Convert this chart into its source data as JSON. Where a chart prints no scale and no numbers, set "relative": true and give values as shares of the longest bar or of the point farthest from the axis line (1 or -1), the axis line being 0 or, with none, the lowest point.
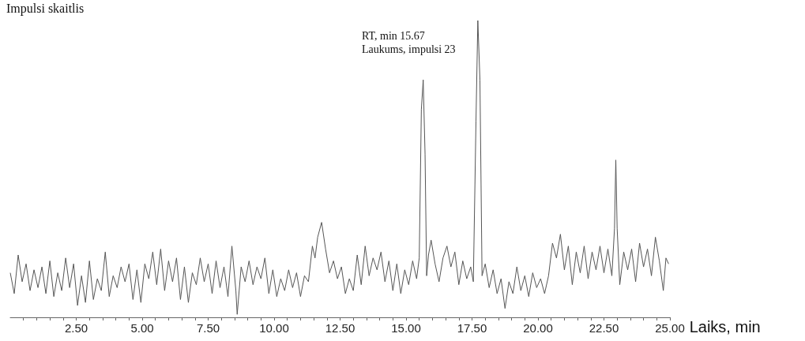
{
  "chart_data": {
    "type": "line",
    "relative": true,
    "ylabel": "Impulsi skaitlis",
    "xlabel": "Laiks, min",
    "xlim": [
      0,
      25
    ],
    "xticks": [
      {
        "value": 0.5,
        "label": null
      },
      {
        "value": 1,
        "label": null
      },
      {
        "value": 1.5,
        "label": null
      },
      {
        "value": 2,
        "label": null
      },
      {
        "value": 2.5,
        "label": "2.50"
      },
      {
        "value": 3,
        "label": null
      },
      {
        "value": 3.5,
        "label": null
      },
      {
        "value": 4,
        "label": null
      },
      {
        "value": 4.5,
        "label": null
      },
      {
        "value": 5,
        "label": "5.00"
      },
      {
        "value": 5.5,
        "label": null
      },
      {
        "value": 6,
        "label": null
      },
      {
        "value": 6.5,
        "label": null
      },
      {
        "value": 7,
        "label": null
      },
      {
        "value": 7.5,
        "label": "7.50"
      },
      {
        "value": 8,
        "label": null
      },
      {
        "value": 8.5,
        "label": null
      },
      {
        "value": 9,
        "label": null
      },
      {
        "value": 9.5,
        "label": null
      },
      {
        "value": 10,
        "label": "10.00"
      },
      {
        "value": 10.5,
        "label": null
      },
      {
        "value": 11,
        "label": null
      },
      {
        "value": 11.5,
        "label": null
      },
      {
        "value": 12,
        "label": null
      },
      {
        "value": 12.5,
        "label": "12.50"
      },
      {
        "value": 13,
        "label": null
      },
      {
        "value": 13.5,
        "label": null
      },
      {
        "value": 14,
        "label": null
      },
      {
        "value": 14.5,
        "label": null
      },
      {
        "value": 15,
        "label": "15.00"
      },
      {
        "value": 15.5,
        "label": null
      },
      {
        "value": 16,
        "label": null
      },
      {
        "value": 16.5,
        "label": null
      },
      {
        "value": 17,
        "label": null
      },
      {
        "value": 17.5,
        "label": "17.50"
      },
      {
        "value": 18,
        "label": null
      },
      {
        "value": 18.5,
        "label": null
      },
      {
        "value": 19,
        "label": null
      },
      {
        "value": 19.5,
        "label": null
      },
      {
        "value": 20,
        "label": "20.00"
      },
      {
        "value": 20.5,
        "label": null
      },
      {
        "value": 21,
        "label": null
      },
      {
        "value": 21.5,
        "label": null
      },
      {
        "value": 22,
        "label": null
      },
      {
        "value": 22.5,
        "label": "22.50"
      },
      {
        "value": 23,
        "label": null
      },
      {
        "value": 23.5,
        "label": null
      },
      {
        "value": 24,
        "label": null
      },
      {
        "value": 24.5,
        "label": null
      },
      {
        "value": 25,
        "label": "25.00"
      }
    ],
    "grid": false,
    "marker": "none",
    "line_style": "solid",
    "annotations": [
      "RT, min 15.67",
      "Laukums, impulsi 23"
    ],
    "series": [
      {
        "color": "#555555",
        "x": [
          0.0,
          0.15,
          0.3,
          0.45,
          0.6,
          0.75,
          0.9,
          1.05,
          1.2,
          1.35,
          1.5,
          1.65,
          1.8,
          1.95,
          2.1,
          2.25,
          2.4,
          2.55,
          2.7,
          2.85,
          3.0,
          3.15,
          3.3,
          3.45,
          3.6,
          3.75,
          3.9,
          4.05,
          4.2,
          4.35,
          4.5,
          4.65,
          4.8,
          4.95,
          5.1,
          5.25,
          5.4,
          5.55,
          5.7,
          5.85,
          6.0,
          6.15,
          6.3,
          6.45,
          6.6,
          6.75,
          6.9,
          7.05,
          7.2,
          7.35,
          7.5,
          7.65,
          7.8,
          7.95,
          8.1,
          8.25,
          8.4,
          8.55,
          8.6,
          8.75,
          8.9,
          9.05,
          9.2,
          9.35,
          9.5,
          9.65,
          9.8,
          9.95,
          10.1,
          10.25,
          10.4,
          10.55,
          10.7,
          10.85,
          11.0,
          11.15,
          11.3,
          11.45,
          11.55,
          11.65,
          11.8,
          11.95,
          12.1,
          12.25,
          12.4,
          12.55,
          12.7,
          12.85,
          13.0,
          13.15,
          13.3,
          13.45,
          13.6,
          13.75,
          13.9,
          14.05,
          14.2,
          14.35,
          14.5,
          14.65,
          14.8,
          14.95,
          15.1,
          15.25,
          15.4,
          15.5,
          15.58,
          15.65,
          15.72,
          15.78,
          15.85,
          15.95,
          16.1,
          16.25,
          16.4,
          16.55,
          16.7,
          16.85,
          17.0,
          17.15,
          17.3,
          17.45,
          17.55,
          17.65,
          17.72,
          17.8,
          17.88,
          18.0,
          18.15,
          18.3,
          18.45,
          18.6,
          18.75,
          18.9,
          19.05,
          19.2,
          19.35,
          19.5,
          19.65,
          19.8,
          19.95,
          20.1,
          20.25,
          20.4,
          20.55,
          20.7,
          20.85,
          21.0,
          21.15,
          21.3,
          21.45,
          21.6,
          21.75,
          21.9,
          22.05,
          22.2,
          22.35,
          22.5,
          22.65,
          22.8,
          22.9,
          22.95,
          23.0,
          23.1,
          23.25,
          23.4,
          23.55,
          23.7,
          23.85,
          24.0,
          24.15,
          24.3,
          24.45,
          24.6,
          24.75,
          24.85,
          24.95
        ],
        "values": [
          0.15,
          0.08,
          0.21,
          0.12,
          0.18,
          0.09,
          0.16,
          0.1,
          0.17,
          0.08,
          0.19,
          0.07,
          0.15,
          0.09,
          0.2,
          0.1,
          0.18,
          0.04,
          0.14,
          0.05,
          0.19,
          0.06,
          0.13,
          0.09,
          0.22,
          0.07,
          0.14,
          0.1,
          0.17,
          0.12,
          0.18,
          0.06,
          0.16,
          0.05,
          0.18,
          0.13,
          0.22,
          0.11,
          0.23,
          0.09,
          0.19,
          0.12,
          0.2,
          0.06,
          0.17,
          0.05,
          0.15,
          0.11,
          0.2,
          0.12,
          0.18,
          0.08,
          0.19,
          0.1,
          0.17,
          0.07,
          0.24,
          0.09,
          0.01,
          0.17,
          0.12,
          0.19,
          0.11,
          0.17,
          0.13,
          0.2,
          0.08,
          0.16,
          0.07,
          0.13,
          0.09,
          0.16,
          0.1,
          0.15,
          0.07,
          0.14,
          0.12,
          0.24,
          0.2,
          0.27,
          0.32,
          0.23,
          0.15,
          0.19,
          0.13,
          0.17,
          0.08,
          0.13,
          0.09,
          0.21,
          0.11,
          0.24,
          0.14,
          0.2,
          0.16,
          0.22,
          0.12,
          0.19,
          0.09,
          0.18,
          0.08,
          0.16,
          0.11,
          0.19,
          0.13,
          0.2,
          0.7,
          0.8,
          0.55,
          0.14,
          0.21,
          0.26,
          0.18,
          0.12,
          0.2,
          0.24,
          0.17,
          0.22,
          0.11,
          0.19,
          0.13,
          0.17,
          0.12,
          0.66,
          1.0,
          0.8,
          0.14,
          0.18,
          0.1,
          0.16,
          0.08,
          0.13,
          0.03,
          0.12,
          0.08,
          0.17,
          0.09,
          0.14,
          0.07,
          0.15,
          0.1,
          0.13,
          0.08,
          0.14,
          0.25,
          0.2,
          0.28,
          0.16,
          0.24,
          0.11,
          0.22,
          0.15,
          0.24,
          0.13,
          0.22,
          0.16,
          0.24,
          0.15,
          0.23,
          0.14,
          0.3,
          0.53,
          0.3,
          0.11,
          0.22,
          0.16,
          0.23,
          0.12,
          0.25,
          0.17,
          0.23,
          0.14,
          0.27,
          0.19,
          0.09,
          0.2,
          0.18
        ]
      }
    ]
  }
}
